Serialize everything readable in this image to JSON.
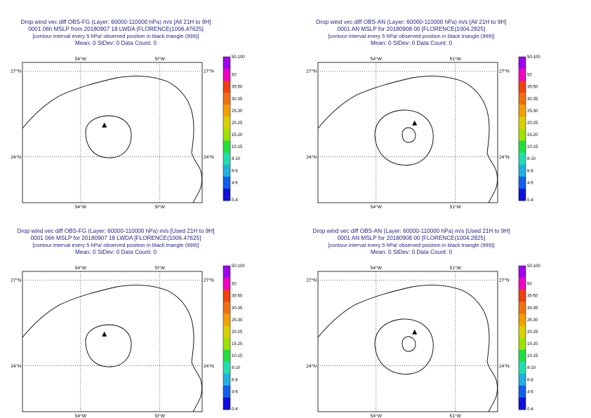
{
  "panels": [
    {
      "title_lines": [
        "Drop wind vec diff OBS-FG (Layer: 60000-110000 hPa) m/s [All 21H to 9H]",
        "0001 06h MSLP from 20180907 18 LWDA [FLORENCE(1006.47625]",
        "[contour interval every 5 hPa/ observed position in black triangle (999)]",
        "Mean: 0 StDev: 0 Data Count: 0"
      ],
      "variant": "fg"
    },
    {
      "title_lines": [
        "Drop wind vec diff OBS-AN (Layer: 60000-110000 hPa) m/s [All 21H to 9H]",
        "0001 AN MSLP for 20180908 00 [FLORENCE(1004.2825]",
        "[contour interval every 5 hPa/ observed position in black triangle (999)]",
        "Mean: 0 StDev: 0 Data Count: 0"
      ],
      "variant": "an"
    },
    {
      "title_lines": [
        "Drop wind vec diff OBS-FG (Layer: 60000-110000 hPa) m/s [Used 21H to 9H]",
        "0001 06h MSLP for 20180907 18 LWDA [FLORENCE(1006.47625]",
        "[contour interval every 5 hPa/ observed position in black triangle (999)]",
        "Mean: 0 StDev: 0 Data Count: 0"
      ],
      "variant": "fg"
    },
    {
      "title_lines": [
        "Drop wind vec diff OBS-AN (Layer: 60000-110000 hPa) m/s [Used 21H to 9H]",
        "0001 AN MSLP for 20180908 00 [FLORENCE(1004.2825]",
        "[contour interval every 5 hPa/ observed position in black triangle (999)]",
        "Mean: 0 StDev: 0 Data Count: 0"
      ],
      "variant": "an"
    }
  ],
  "chart_data": {
    "type": "map",
    "x_ticks": [
      {
        "value": -54,
        "label": "54°W"
      },
      {
        "value": -51,
        "label": "51°W"
      }
    ],
    "x_ticks_alt": [
      {
        "value": -54,
        "label": "54°W"
      },
      {
        "value": -51,
        "label": "5I°W"
      }
    ],
    "y_ticks": [
      {
        "value": 27,
        "label": "27°N"
      },
      {
        "value": 24,
        "label": "24°N"
      }
    ],
    "lon_range": [
      -56.2,
      -49.4
    ],
    "lat_range": [
      22.4,
      27.3
    ],
    "grid": "dotted",
    "storm_position": {
      "lon": -53.1,
      "lat": 25.1
    },
    "colorbar": {
      "labels": [
        "50-100",
        "50",
        "35-50",
        "30-35",
        "25-30",
        "20-25",
        "15-20",
        "10-15",
        "8-10",
        "6-8",
        "4-6",
        "0-4"
      ],
      "colors": [
        "#a000f0",
        "#f000c0",
        "#f04010",
        "#f07010",
        "#f0a000",
        "#d8d000",
        "#a0e000",
        "#20e040",
        "#20e0b0",
        "#20b0e0",
        "#1060f0",
        "#1010e0"
      ]
    }
  }
}
